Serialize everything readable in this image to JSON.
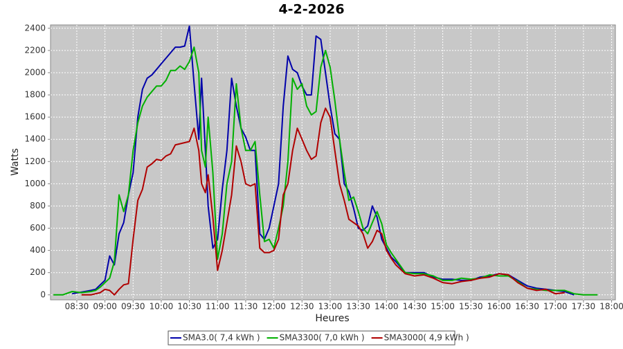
{
  "chart_data": {
    "type": "line",
    "title": "4-2-2026",
    "x_label": "Heures",
    "y_label": "Watts",
    "x": [
      "08:05",
      "08:15",
      "08:25",
      "08:35",
      "08:45",
      "08:50",
      "08:55",
      "09:00",
      "09:05",
      "09:10",
      "09:15",
      "09:20",
      "09:25",
      "09:30",
      "09:35",
      "09:40",
      "09:45",
      "09:50",
      "09:55",
      "10:00",
      "10:05",
      "10:10",
      "10:15",
      "10:20",
      "10:25",
      "10:30",
      "10:35",
      "10:40",
      "10:43",
      "10:47",
      "10:50",
      "10:55",
      "11:00",
      "11:05",
      "11:10",
      "11:15",
      "11:20",
      "11:25",
      "11:30",
      "11:35",
      "11:40",
      "11:45",
      "11:50",
      "11:55",
      "12:00",
      "12:05",
      "12:10",
      "12:15",
      "12:20",
      "12:25",
      "12:30",
      "12:35",
      "12:40",
      "12:45",
      "12:50",
      "12:55",
      "13:00",
      "13:05",
      "13:10",
      "13:15",
      "13:20",
      "13:25",
      "13:30",
      "13:35",
      "13:40",
      "13:45",
      "13:50",
      "13:55",
      "14:00",
      "14:05",
      "14:10",
      "14:15",
      "14:20",
      "14:30",
      "14:40",
      "14:50",
      "15:00",
      "15:10",
      "15:20",
      "15:30",
      "15:40",
      "15:50",
      "16:00",
      "16:10",
      "16:20",
      "16:30",
      "16:40",
      "16:50",
      "17:00",
      "17:10",
      "17:20",
      "17:30",
      "17:45"
    ],
    "series": [
      {
        "name": "SMA3.0( 7,4 kWh )",
        "color": "#0000aa",
        "values": [
          null,
          null,
          10,
          25,
          40,
          50,
          90,
          130,
          350,
          270,
          550,
          650,
          900,
          1100,
          1600,
          1850,
          1950,
          1980,
          2030,
          2080,
          2130,
          2180,
          2230,
          2230,
          2240,
          2420,
          1900,
          1400,
          1950,
          1300,
          800,
          420,
          500,
          950,
          1300,
          1950,
          1700,
          1500,
          1420,
          1300,
          1300,
          550,
          500,
          600,
          800,
          1000,
          1700,
          2150,
          2030,
          2000,
          1880,
          1800,
          1800,
          2330,
          2300,
          2000,
          1700,
          1450,
          1400,
          1000,
          930,
          780,
          600,
          580,
          620,
          800,
          700,
          500,
          420,
          340,
          300,
          250,
          200,
          200,
          200,
          160,
          140,
          140,
          130,
          130,
          160,
          170,
          190,
          180,
          130,
          80,
          60,
          50,
          40,
          30,
          0,
          null,
          null
        ]
      },
      {
        "name": "SMA3300( 7,0 kWh )",
        "color": "#00b000",
        "values": [
          0,
          0,
          30,
          20,
          30,
          40,
          70,
          110,
          150,
          300,
          900,
          750,
          900,
          1300,
          1550,
          1700,
          1780,
          1830,
          1880,
          1880,
          1930,
          2020,
          2020,
          2060,
          2030,
          2100,
          2230,
          2000,
          1300,
          1150,
          1600,
          1100,
          320,
          550,
          1000,
          1200,
          1900,
          1500,
          1300,
          1300,
          1380,
          900,
          480,
          500,
          420,
          600,
          800,
          1200,
          1950,
          1850,
          1900,
          1700,
          1620,
          1650,
          2050,
          2200,
          2050,
          1750,
          1400,
          1100,
          850,
          880,
          750,
          600,
          550,
          650,
          750,
          640,
          450,
          380,
          320,
          260,
          200,
          190,
          190,
          170,
          130,
          130,
          150,
          140,
          150,
          180,
          170,
          170,
          120,
          60,
          50,
          40,
          40,
          40,
          10,
          0,
          0
        ]
      },
      {
        "name": "SMA3000( 4,9 kWh )",
        "color": "#b00000",
        "values": [
          null,
          null,
          null,
          0,
          0,
          10,
          20,
          50,
          40,
          0,
          50,
          90,
          100,
          500,
          850,
          950,
          1150,
          1180,
          1220,
          1210,
          1250,
          1270,
          1350,
          1360,
          1370,
          1380,
          1500,
          1300,
          1000,
          920,
          1080,
          700,
          220,
          400,
          650,
          900,
          1340,
          1200,
          1000,
          980,
          1000,
          420,
          380,
          380,
          400,
          500,
          900,
          1000,
          1300,
          1500,
          1400,
          1300,
          1220,
          1250,
          1550,
          1680,
          1600,
          1300,
          1000,
          850,
          680,
          650,
          620,
          550,
          420,
          480,
          580,
          550,
          400,
          330,
          270,
          230,
          190,
          170,
          180,
          150,
          110,
          100,
          120,
          130,
          150,
          160,
          190,
          180,
          110,
          60,
          40,
          50,
          10,
          20,
          null,
          null,
          null
        ]
      }
    ],
    "xlim": [
      "08:02",
      "18:04"
    ],
    "xticks": [
      "08:30",
      "09:00",
      "09:30",
      "10:00",
      "10:30",
      "11:00",
      "11:30",
      "12:00",
      "12:30",
      "13:00",
      "13:30",
      "14:00",
      "14:30",
      "15:00",
      "15:30",
      "16:00",
      "16:30",
      "17:00",
      "17:30",
      "18:00"
    ],
    "ylim": [
      -45,
      2430
    ],
    "yticks": [
      0,
      200,
      400,
      600,
      800,
      1000,
      1200,
      1400,
      1600,
      1800,
      2000,
      2200,
      2400
    ],
    "grid": true,
    "legend": "bottom"
  }
}
